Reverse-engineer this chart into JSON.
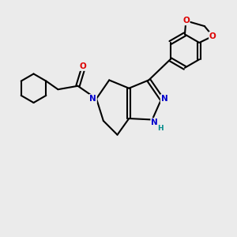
{
  "background_color": "#ebebeb",
  "atom_colors": {
    "C": "#000000",
    "N": "#0000cc",
    "O": "#dd0000",
    "H": "#008b8b"
  },
  "figsize": [
    3.0,
    3.0
  ],
  "dpi": 100
}
